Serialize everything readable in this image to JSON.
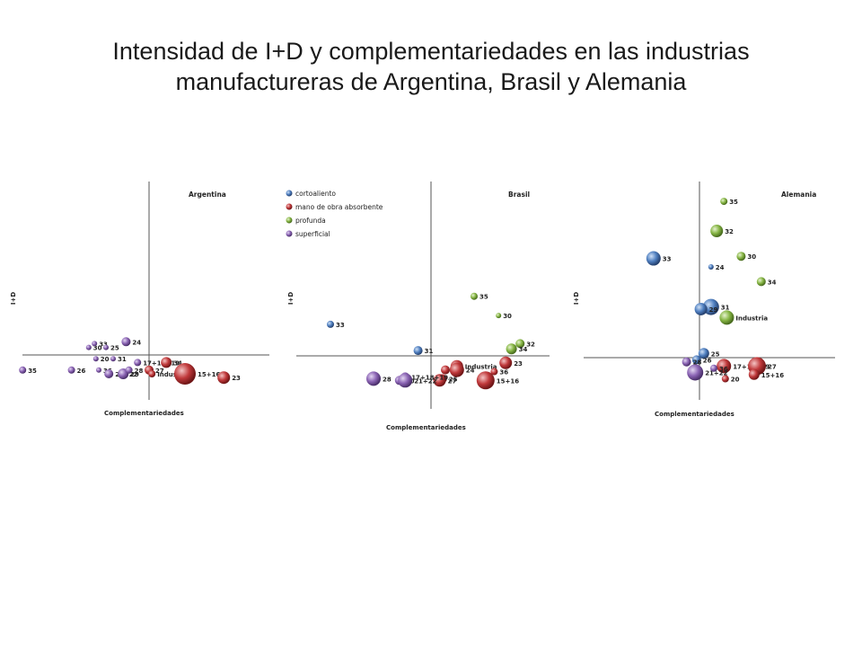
{
  "page": {
    "title_line1": "Intensidad de I+D y complementariedades  en las industrias",
    "title_line2": "manufactureras de Argentina, Brasil y Alemania"
  },
  "colors": {
    "cortoaliento": "#4f7fc0",
    "mano de obra absorbente": "#c0393b",
    "profunda": "#86b544",
    "superficial": "#8b64b4"
  },
  "legend": [
    "cortoaliento",
    "mano de obra absorbente",
    "profunda",
    "superficial"
  ],
  "chart_data": [
    {
      "type": "scatter",
      "title": "Argentina",
      "xlabel": "Complementariedades",
      "ylabel": "I+D",
      "points": [
        {
          "label": "35",
          "group": "superficial",
          "x": -0.88,
          "y": -0.08,
          "size": 4
        },
        {
          "label": "26",
          "group": "superficial",
          "x": -0.54,
          "y": -0.08,
          "size": 4
        },
        {
          "label": "30",
          "group": "superficial",
          "x": -0.42,
          "y": 0.04,
          "size": 3
        },
        {
          "label": "33",
          "group": "superficial",
          "x": -0.38,
          "y": 0.06,
          "size": 3
        },
        {
          "label": "25",
          "group": "superficial",
          "x": -0.3,
          "y": 0.04,
          "size": 3
        },
        {
          "label": "20",
          "group": "superficial",
          "x": -0.37,
          "y": -0.02,
          "size": 3
        },
        {
          "label": "31",
          "group": "superficial",
          "x": -0.25,
          "y": -0.02,
          "size": 3
        },
        {
          "label": "36",
          "group": "superficial",
          "x": -0.35,
          "y": -0.08,
          "size": 3
        },
        {
          "label": "21+22",
          "group": "superficial",
          "x": -0.28,
          "y": -0.1,
          "size": 5
        },
        {
          "label": "29",
          "group": "superficial",
          "x": -0.18,
          "y": -0.1,
          "size": 6
        },
        {
          "label": "24",
          "group": "superficial",
          "x": -0.16,
          "y": 0.07,
          "size": 5
        },
        {
          "label": "17+18+19",
          "group": "superficial",
          "x": -0.08,
          "y": -0.04,
          "size": 4
        },
        {
          "label": "28",
          "group": "superficial",
          "x": -0.14,
          "y": -0.08,
          "size": 4
        },
        {
          "label": "27",
          "group": "mano de obra absorbente",
          "x": 0.0,
          "y": -0.08,
          "size": 5
        },
        {
          "label": "Industria",
          "group": "mano de obra absorbente",
          "x": 0.02,
          "y": -0.1,
          "size": 4
        },
        {
          "label": "34",
          "group": "mano de obra absorbente",
          "x": 0.12,
          "y": -0.04,
          "size": 6
        },
        {
          "label": "15+16",
          "group": "mano de obra absorbente",
          "x": 0.25,
          "y": -0.1,
          "size": 12
        },
        {
          "label": "23",
          "group": "mano de obra absorbente",
          "x": 0.52,
          "y": -0.12,
          "size": 7
        }
      ]
    },
    {
      "type": "scatter",
      "title": "Brasil",
      "xlabel": "Complementariedades",
      "ylabel": "I+D",
      "points": [
        {
          "label": "35",
          "group": "profunda",
          "x": 0.3,
          "y": 0.34,
          "size": 4
        },
        {
          "label": "30",
          "group": "profunda",
          "x": 0.47,
          "y": 0.23,
          "size": 3
        },
        {
          "label": "32",
          "group": "profunda",
          "x": 0.62,
          "y": 0.07,
          "size": 5
        },
        {
          "label": "34",
          "group": "profunda",
          "x": 0.56,
          "y": 0.04,
          "size": 6
        },
        {
          "label": "33",
          "group": "cortoaliento",
          "x": -0.7,
          "y": 0.18,
          "size": 4
        },
        {
          "label": "31",
          "group": "cortoaliento",
          "x": -0.09,
          "y": 0.03,
          "size": 5
        },
        {
          "label": "Industria",
          "group": "mano de obra absorbente",
          "x": 0.18,
          "y": -0.06,
          "size": 7
        },
        {
          "label": "29",
          "group": "mano de obra absorbente",
          "x": 0.1,
          "y": -0.08,
          "size": 5
        },
        {
          "label": "25",
          "group": "mano de obra absorbente",
          "x": 0.08,
          "y": -0.13,
          "size": 5
        },
        {
          "label": "24",
          "group": "mano de obra absorbente",
          "x": 0.18,
          "y": -0.08,
          "size": 8
        },
        {
          "label": "27",
          "group": "mano de obra absorbente",
          "x": 0.06,
          "y": -0.14,
          "size": 7
        },
        {
          "label": "23",
          "group": "mano de obra absorbente",
          "x": 0.52,
          "y": -0.04,
          "size": 7
        },
        {
          "label": "36",
          "group": "mano de obra absorbente",
          "x": 0.44,
          "y": -0.09,
          "size": 4
        },
        {
          "label": "15+16",
          "group": "mano de obra absorbente",
          "x": 0.38,
          "y": -0.14,
          "size": 10
        },
        {
          "label": "17+18+19",
          "group": "superficial",
          "x": -0.18,
          "y": -0.12,
          "size": 5
        },
        {
          "label": "28",
          "group": "superficial",
          "x": -0.4,
          "y": -0.13,
          "size": 8
        },
        {
          "label": "20",
          "group": "superficial",
          "x": -0.22,
          "y": -0.14,
          "size": 5
        },
        {
          "label": "21+22",
          "group": "superficial",
          "x": -0.18,
          "y": -0.14,
          "size": 8
        }
      ]
    },
    {
      "type": "scatter",
      "title": "Alemania",
      "xlabel": "Complementariedades",
      "ylabel": "I+D",
      "points": [
        {
          "label": "35",
          "group": "profunda",
          "x": 0.17,
          "y": 0.74,
          "size": 4
        },
        {
          "label": "32",
          "group": "profunda",
          "x": 0.12,
          "y": 0.6,
          "size": 7
        },
        {
          "label": "30",
          "group": "profunda",
          "x": 0.29,
          "y": 0.48,
          "size": 5
        },
        {
          "label": "34",
          "group": "profunda",
          "x": 0.43,
          "y": 0.36,
          "size": 5
        },
        {
          "label": "Industria",
          "group": "profunda",
          "x": 0.19,
          "y": 0.19,
          "size": 8
        },
        {
          "label": "33",
          "group": "cortoaliento",
          "x": -0.32,
          "y": 0.47,
          "size": 8
        },
        {
          "label": "24",
          "group": "cortoaliento",
          "x": 0.08,
          "y": 0.43,
          "size": 3
        },
        {
          "label": "31",
          "group": "cortoaliento",
          "x": 0.08,
          "y": 0.24,
          "size": 9
        },
        {
          "label": "29",
          "group": "cortoaliento",
          "x": 0.01,
          "y": 0.23,
          "size": 7
        },
        {
          "label": "25",
          "group": "cortoaliento",
          "x": 0.03,
          "y": 0.02,
          "size": 6
        },
        {
          "label": "26",
          "group": "cortoaliento",
          "x": -0.02,
          "y": -0.01,
          "size": 5
        },
        {
          "label": "17+18+19",
          "group": "mano de obra absorbente",
          "x": 0.17,
          "y": -0.04,
          "size": 8
        },
        {
          "label": "27",
          "group": "mano de obra absorbente",
          "x": 0.4,
          "y": -0.04,
          "size": 10
        },
        {
          "label": "20",
          "group": "mano de obra absorbente",
          "x": 0.18,
          "y": -0.1,
          "size": 4
        },
        {
          "label": "15+16",
          "group": "mano de obra absorbente",
          "x": 0.38,
          "y": -0.08,
          "size": 6
        },
        {
          "label": "28",
          "group": "superficial",
          "x": -0.09,
          "y": -0.02,
          "size": 5
        },
        {
          "label": "21+22",
          "group": "superficial",
          "x": -0.03,
          "y": -0.07,
          "size": 9
        },
        {
          "label": "36",
          "group": "superficial",
          "x": 0.1,
          "y": -0.05,
          "size": 4
        }
      ]
    }
  ]
}
